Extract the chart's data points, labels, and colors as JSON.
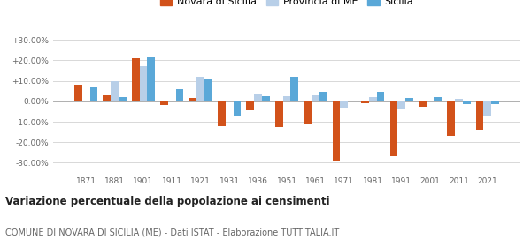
{
  "years": [
    1871,
    1881,
    1901,
    1911,
    1921,
    1931,
    1936,
    1951,
    1961,
    1971,
    1981,
    1991,
    2001,
    2011,
    2021
  ],
  "novara": [
    8.0,
    3.0,
    21.0,
    -2.0,
    1.5,
    -12.0,
    -4.5,
    -12.5,
    -11.5,
    -29.0,
    -1.0,
    -27.0,
    -2.5,
    -17.0,
    -14.0
  ],
  "provincia": [
    0.0,
    10.0,
    17.0,
    0.0,
    12.0,
    0.0,
    3.5,
    2.5,
    3.0,
    -3.0,
    2.0,
    -3.5,
    0.0,
    1.0,
    -7.0
  ],
  "sicilia": [
    7.0,
    2.0,
    21.5,
    6.0,
    10.5,
    -7.0,
    2.5,
    12.0,
    4.5,
    0.0,
    4.5,
    1.5,
    2.0,
    -1.5,
    -1.5
  ],
  "novara_color": "#d2521a",
  "provincia_color": "#b8cfe8",
  "sicilia_color": "#5aa8d8",
  "title1": "Variazione percentuale della popolazione ai censimenti",
  "title2": "COMUNE DI NOVARA DI SICILIA (ME) - Dati ISTAT - Elaborazione TUTTITALIA.IT",
  "legend_labels": [
    "Novara di Sicilia",
    "Provincia di ME",
    "Sicilia"
  ],
  "yticks": [
    -30,
    -20,
    -10,
    0,
    10,
    20,
    30
  ],
  "ylim": [
    -35,
    35
  ],
  "background_color": "#ffffff",
  "grid_color": "#d8d8d8"
}
